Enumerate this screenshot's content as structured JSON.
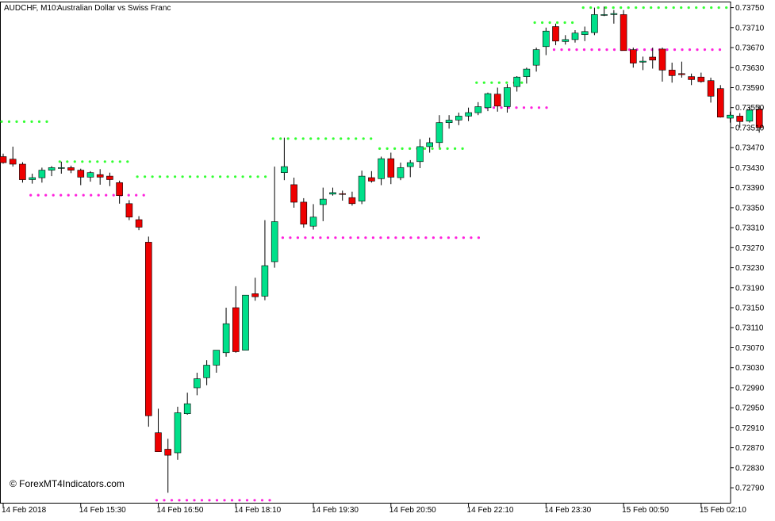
{
  "header": {
    "symbol_timeframe": "AUDCHF, M10:",
    "description": "Australian Dollar vs Swiss Franc"
  },
  "watermark": "© ForexMT4Indicators.com",
  "colors": {
    "bull": "#00e08a",
    "bear": "#ee0000",
    "wick": "#000000",
    "resistance_dots": "#33ff33",
    "support_dots": "#ff22dd",
    "grid_frame": "#000000",
    "background": "#ffffff"
  },
  "chart_data": {
    "type": "candlestick",
    "ylim": [
      0.7276,
      0.73762
    ],
    "y_ticks": [
      "0.73750",
      "0.73710",
      "0.73670",
      "0.73630",
      "0.73590",
      "0.73550",
      "0.73510",
      "0.73470",
      "0.73430",
      "0.73390",
      "0.73350",
      "0.73310",
      "0.73270",
      "0.73230",
      "0.73190",
      "0.73150",
      "0.73110",
      "0.73070",
      "0.73030",
      "0.72990",
      "0.72950",
      "0.72910",
      "0.72870",
      "0.72830",
      "0.72790"
    ],
    "x_ticks": [
      {
        "label": "14 Feb 2018",
        "index": 0
      },
      {
        "label": "14 Feb 15:30",
        "index": 8
      },
      {
        "label": "14 Feb 16:50",
        "index": 16
      },
      {
        "label": "14 Feb 18:10",
        "index": 24
      },
      {
        "label": "14 Feb 19:30",
        "index": 32
      },
      {
        "label": "14 Feb 20:50",
        "index": 40
      },
      {
        "label": "14 Feb 22:10",
        "index": 48
      },
      {
        "label": "14 Feb 23:30",
        "index": 56
      },
      {
        "label": "15 Feb 00:50",
        "index": 64
      },
      {
        "label": "15 Feb 02:10",
        "index": 72
      }
    ],
    "candles": [
      [
        0.73452,
        0.73458,
        0.73438,
        0.7344
      ],
      [
        0.73447,
        0.73472,
        0.73432,
        0.73437
      ],
      [
        0.73437,
        0.73441,
        0.734,
        0.73406
      ],
      [
        0.73406,
        0.73418,
        0.73398,
        0.7341
      ],
      [
        0.7341,
        0.7343,
        0.734,
        0.73425
      ],
      [
        0.73425,
        0.73433,
        0.73413,
        0.7343
      ],
      [
        0.73429,
        0.73442,
        0.73418,
        0.7343
      ],
      [
        0.7343,
        0.73434,
        0.73419,
        0.73425
      ],
      [
        0.73425,
        0.73428,
        0.73395,
        0.73411
      ],
      [
        0.73411,
        0.73423,
        0.73402,
        0.7342
      ],
      [
        0.73416,
        0.73427,
        0.73396,
        0.73411
      ],
      [
        0.73413,
        0.7342,
        0.73393,
        0.73406
      ],
      [
        0.734,
        0.73404,
        0.73358,
        0.73374
      ],
      [
        0.73358,
        0.73365,
        0.73325,
        0.73331
      ],
      [
        0.73326,
        0.73333,
        0.73305,
        0.73311
      ],
      [
        0.73281,
        0.73292,
        0.72912,
        0.72934
      ],
      [
        0.729,
        0.72948,
        0.72867,
        0.72862
      ],
      [
        0.72867,
        0.72888,
        0.7278,
        0.72855
      ],
      [
        0.7286,
        0.72952,
        0.72846,
        0.7294
      ],
      [
        0.72938,
        0.7298,
        0.72936,
        0.72958
      ],
      [
        0.7299,
        0.7302,
        0.72975,
        0.73008
      ],
      [
        0.7301,
        0.73045,
        0.72995,
        0.73035
      ],
      [
        0.73035,
        0.73058,
        0.7302,
        0.73065
      ],
      [
        0.7306,
        0.7315,
        0.73052,
        0.73118
      ],
      [
        0.7315,
        0.73193,
        0.7306,
        0.73062
      ],
      [
        0.73065,
        0.7317,
        0.73068,
        0.73175
      ],
      [
        0.73178,
        0.7321,
        0.73164,
        0.73172
      ],
      [
        0.73173,
        0.73325,
        0.73165,
        0.73234
      ],
      [
        0.73242,
        0.73432,
        0.7323,
        0.73322
      ],
      [
        0.7342,
        0.7349,
        0.73405,
        0.73432
      ],
      [
        0.73396,
        0.7341,
        0.7335,
        0.73361
      ],
      [
        0.73361,
        0.73369,
        0.7331,
        0.73317
      ],
      [
        0.73313,
        0.73357,
        0.73306,
        0.73331
      ],
      [
        0.73356,
        0.7339,
        0.73323,
        0.73367
      ],
      [
        0.73377,
        0.7339,
        0.73374,
        0.7338
      ],
      [
        0.73378,
        0.73384,
        0.73364,
        0.73377
      ],
      [
        0.7337,
        0.73382,
        0.73354,
        0.73358
      ],
      [
        0.73363,
        0.73424,
        0.73357,
        0.73413
      ],
      [
        0.7341,
        0.73423,
        0.734,
        0.73403
      ],
      [
        0.73408,
        0.73452,
        0.73395,
        0.73448
      ],
      [
        0.73448,
        0.7346,
        0.73397,
        0.73411
      ],
      [
        0.7341,
        0.7344,
        0.73405,
        0.7343
      ],
      [
        0.73432,
        0.73445,
        0.73411,
        0.7344
      ],
      [
        0.73442,
        0.73487,
        0.73429,
        0.73472
      ],
      [
        0.73472,
        0.7349,
        0.7346,
        0.7348
      ],
      [
        0.7348,
        0.73535,
        0.7347,
        0.7352
      ],
      [
        0.7352,
        0.73535,
        0.73508,
        0.73525
      ],
      [
        0.73525,
        0.7354,
        0.73515,
        0.73533
      ],
      [
        0.73533,
        0.7355,
        0.73523,
        0.7354
      ],
      [
        0.7354,
        0.73561,
        0.73535,
        0.73552
      ],
      [
        0.7355,
        0.7358,
        0.73543,
        0.73578
      ],
      [
        0.73577,
        0.7359,
        0.73542,
        0.73553
      ],
      [
        0.73552,
        0.73597,
        0.7354,
        0.7359
      ],
      [
        0.73592,
        0.73613,
        0.73582,
        0.73611
      ],
      [
        0.73612,
        0.7363,
        0.73598,
        0.73627
      ],
      [
        0.73635,
        0.7367,
        0.73622,
        0.73666
      ],
      [
        0.73672,
        0.7371,
        0.73655,
        0.73703
      ],
      [
        0.73712,
        0.73718,
        0.73675,
        0.73683
      ],
      [
        0.73682,
        0.73695,
        0.73676,
        0.73686
      ],
      [
        0.73686,
        0.73705,
        0.7368,
        0.73699
      ],
      [
        0.73696,
        0.73712,
        0.73683,
        0.73702
      ],
      [
        0.737,
        0.7375,
        0.73695,
        0.73736
      ],
      [
        0.73736,
        0.73752,
        0.73733,
        0.73736
      ],
      [
        0.73736,
        0.73745,
        0.73718,
        0.73738
      ],
      [
        0.73736,
        0.73745,
        0.7367,
        0.73664
      ],
      [
        0.73666,
        0.7367,
        0.7363,
        0.73639
      ],
      [
        0.73641,
        0.73652,
        0.73625,
        0.73643
      ],
      [
        0.73651,
        0.7367,
        0.73628,
        0.73645
      ],
      [
        0.73667,
        0.7367,
        0.73602,
        0.73625
      ],
      [
        0.73625,
        0.7364,
        0.736,
        0.73614
      ],
      [
        0.73618,
        0.73642,
        0.7361,
        0.73616
      ],
      [
        0.73612,
        0.73618,
        0.73595,
        0.73606
      ],
      [
        0.73611,
        0.7362,
        0.736,
        0.73602
      ],
      [
        0.73604,
        0.7361,
        0.7356,
        0.73573
      ],
      [
        0.73588,
        0.73595,
        0.7353,
        0.73531
      ],
      [
        0.73529,
        0.73542,
        0.7352,
        0.73535
      ],
      [
        0.73533,
        0.73539,
        0.7351,
        0.73522
      ],
      [
        0.73523,
        0.73551,
        0.7352,
        0.73545
      ],
      [
        0.73547,
        0.73555,
        0.735,
        0.7351
      ]
    ],
    "resistance_segments": [
      {
        "start": 0,
        "end": 5,
        "price": 0.73522
      },
      {
        "start": 6,
        "end": 13,
        "price": 0.73442
      },
      {
        "start": 14,
        "end": 27,
        "price": 0.73412
      },
      {
        "start": 28,
        "end": 38,
        "price": 0.73488
      },
      {
        "start": 39,
        "end": 48,
        "price": 0.73468
      },
      {
        "start": 49,
        "end": 54,
        "price": 0.736
      },
      {
        "start": 55,
        "end": 59,
        "price": 0.7372
      },
      {
        "start": 60,
        "end": 78,
        "price": 0.7375
      }
    ],
    "support_segments": [
      {
        "start": 3,
        "end": 15,
        "price": 0.73375
      },
      {
        "start": 16,
        "end": 28,
        "price": 0.72765
      },
      {
        "start": 29,
        "end": 49,
        "price": 0.7329
      },
      {
        "start": 50,
        "end": 56,
        "price": 0.7355
      },
      {
        "start": 57,
        "end": 78,
        "price": 0.73666
      }
    ]
  }
}
